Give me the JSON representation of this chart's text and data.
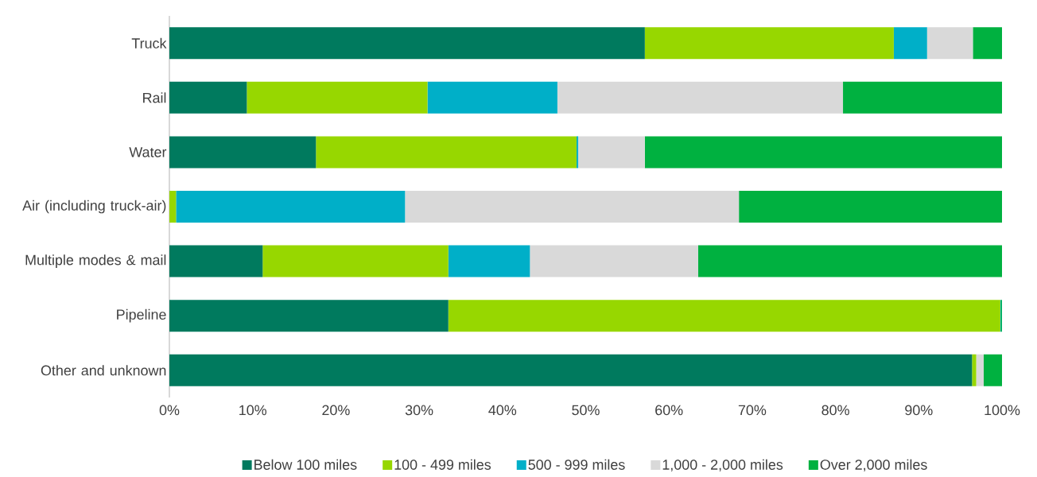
{
  "chart_data": {
    "type": "bar",
    "orientation": "horizontal",
    "stacked": true,
    "categories": [
      "Truck",
      "Rail",
      "Water",
      "Air (including truck-air)",
      "Multiple modes & mail",
      "Pipeline",
      "Other and unknown"
    ],
    "series": [
      {
        "name": "Below 100 miles",
        "color": "#007a5e",
        "values": [
          57.1,
          9.3,
          17.6,
          0,
          11.2,
          33.5,
          96.4
        ]
      },
      {
        "name": "100 - 499 miles",
        "color": "#97d700",
        "values": [
          29.9,
          21.7,
          31.3,
          0.8,
          22.3,
          66.3,
          0.5
        ]
      },
      {
        "name": "500 - 999 miles",
        "color": "#00afc8",
        "values": [
          4.0,
          15.6,
          0.2,
          27.5,
          9.8,
          0.1,
          0
        ]
      },
      {
        "name": "1,000 - 2,000 miles",
        "color": "#d9d9d9",
        "values": [
          5.5,
          34.3,
          8.0,
          40.1,
          20.2,
          0,
          0.9
        ]
      },
      {
        "name": "Over 2,000 miles",
        "color": "#00b140",
        "values": [
          3.5,
          19.1,
          42.9,
          31.6,
          36.5,
          0.1,
          2.2
        ]
      }
    ],
    "xlim": [
      0,
      100
    ],
    "xticks": [
      {
        "value": 0,
        "label": "0%"
      },
      {
        "value": 10,
        "label": "10%"
      },
      {
        "value": 20,
        "label": "20%"
      },
      {
        "value": 30,
        "label": "30%"
      },
      {
        "value": 40,
        "label": "40%"
      },
      {
        "value": 50,
        "label": "50%"
      },
      {
        "value": 60,
        "label": "60%"
      },
      {
        "value": 70,
        "label": "70%"
      },
      {
        "value": 80,
        "label": "80%"
      },
      {
        "value": 90,
        "label": "90%"
      },
      {
        "value": 100,
        "label": "100%"
      }
    ],
    "legend": "bottom"
  }
}
